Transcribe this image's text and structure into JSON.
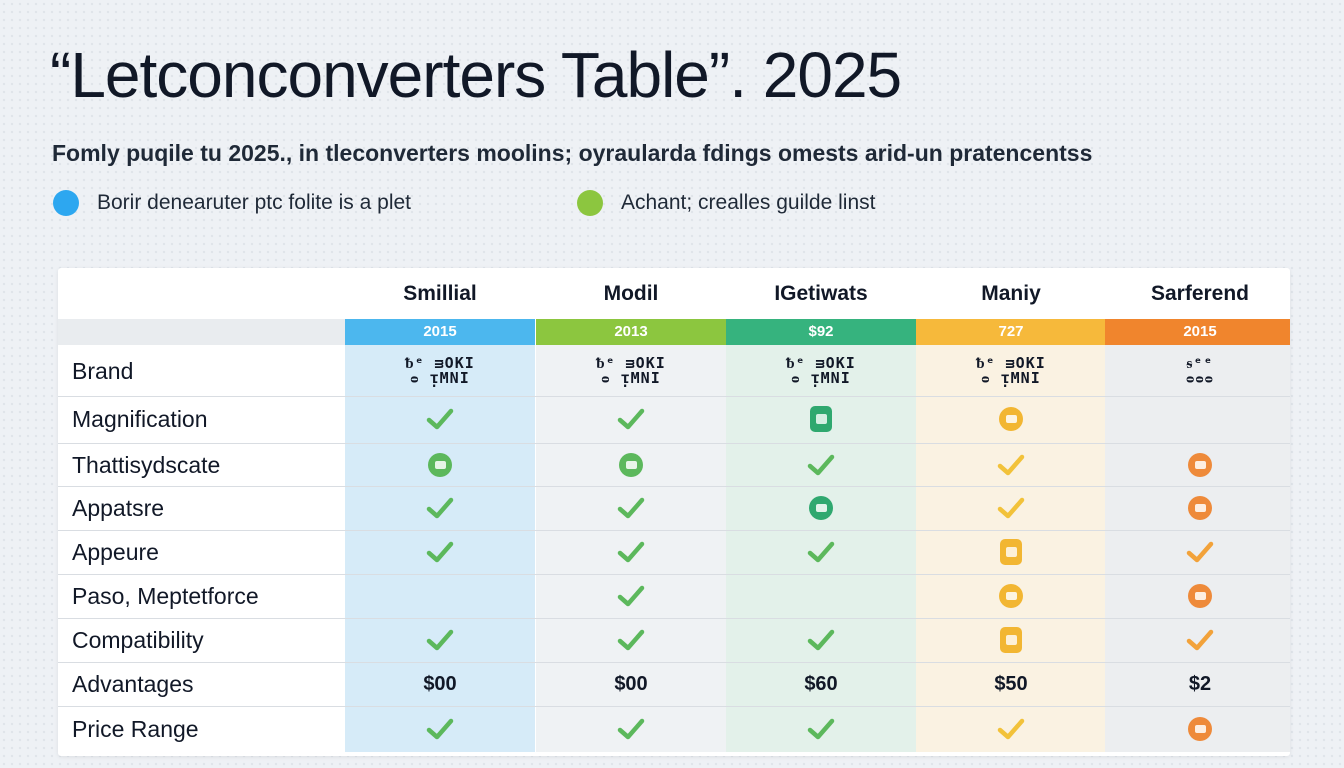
{
  "title": "“Letconconverters Table”. 2025",
  "subtitle": "Fomly puqile tu 2025., in tleconverters moolins; oyraularda fdings omests arid-un pratencentss",
  "legend": [
    {
      "label": "Borir denearuter ptc folite is a plet",
      "color": "#2da7f0"
    },
    {
      "label": "Achant; crealles guilde linst",
      "color": "#8cc63f"
    }
  ],
  "columns": [
    {
      "name": "Smillial",
      "band": "2015",
      "color": "#4cb7ee",
      "bg": "#d6ebf8"
    },
    {
      "name": "Modil",
      "band": "2013",
      "color": "#8cc63f",
      "bg": "#eff2f4"
    },
    {
      "name": "IGetiwats",
      "band": "$92",
      "color": "#36b37e",
      "bg": "#e3f1ea"
    },
    {
      "name": "Maniy",
      "band": "727",
      "color": "#f6b93b",
      "bg": "#faf2e2"
    },
    {
      "name": "Sarferend",
      "band": "2015",
      "color": "#f0852d",
      "bg": "#eceef0"
    }
  ],
  "brand_logos": [
    {
      "line1": "ᵬᵉ ᴟOKI",
      "line2": "ᴑ ᴉMNI"
    },
    {
      "line1": "ᵬᵉ ᴟOKI",
      "line2": "ᴑ ᴉMNI"
    },
    {
      "line1": "ᵬᵉ ᴟOKI",
      "line2": "ᴑ ᴉMNI"
    },
    {
      "line1": "ᵬᵉ ᴟOKI",
      "line2": "ᴑ ᴉMNI"
    },
    {
      "line1": "ᵴᵉᵉ",
      "line2": "ᴑᴑᴑ"
    }
  ],
  "rows": [
    {
      "label": "Brand",
      "cells": [
        "logo",
        "logo",
        "logo",
        "logo",
        "logo"
      ]
    },
    {
      "label": "Magnification",
      "cells": [
        "check",
        "check",
        "square",
        "circle",
        "empty"
      ]
    },
    {
      "label": "Thattisydscate",
      "cells": [
        "circle",
        "circle",
        "check",
        "check",
        "circle"
      ]
    },
    {
      "label": "Appatsre",
      "cells": [
        "check",
        "check",
        "circle",
        "check",
        "circle"
      ]
    },
    {
      "label": "Appeure",
      "cells": [
        "check",
        "check",
        "check",
        "square",
        "check"
      ]
    },
    {
      "label": "Paso, Meptetforce",
      "cells": [
        "empty",
        "check",
        "empty",
        "circle",
        "circle"
      ]
    },
    {
      "label": "Compatibility",
      "cells": [
        "check",
        "check",
        "check",
        "square",
        "check"
      ]
    },
    {
      "label": "Advantages",
      "cells": [
        "$00",
        "$00",
        "$60",
        "$50",
        "$2"
      ]
    },
    {
      "label": "Price Range",
      "cells": [
        "check",
        "check",
        "check",
        "check",
        "circle"
      ]
    }
  ],
  "icon_colors": {
    "green": "#5cb85c",
    "amber": "#f2b632",
    "orange": "#ee8a3a",
    "teal": "#2fa86f"
  },
  "icon_palette": [
    [
      "green",
      "green",
      "teal",
      "amber",
      "orange"
    ]
  ]
}
